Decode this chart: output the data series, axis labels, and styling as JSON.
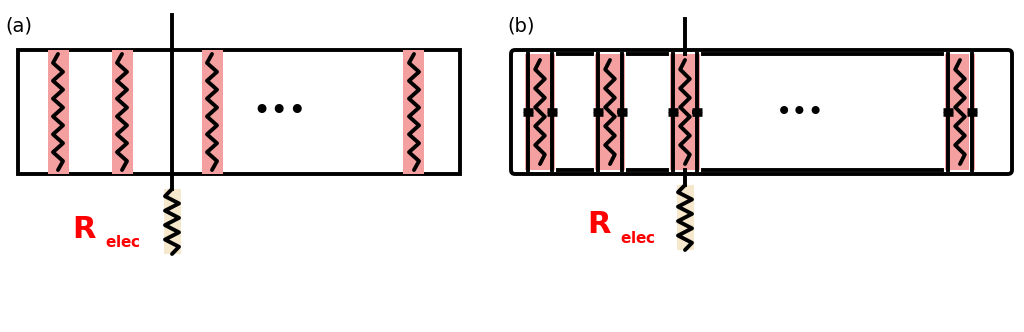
{
  "background": "#ffffff",
  "pink_color": "#f5a0a0",
  "beige_color": "#f5e8cc",
  "line_color": "#000000",
  "red_color": "#ff0000",
  "label_a": "(a)",
  "label_b": "(b)",
  "figsize": [
    10.24,
    3.32
  ],
  "dpi": 100,
  "lw_main": 2.8
}
